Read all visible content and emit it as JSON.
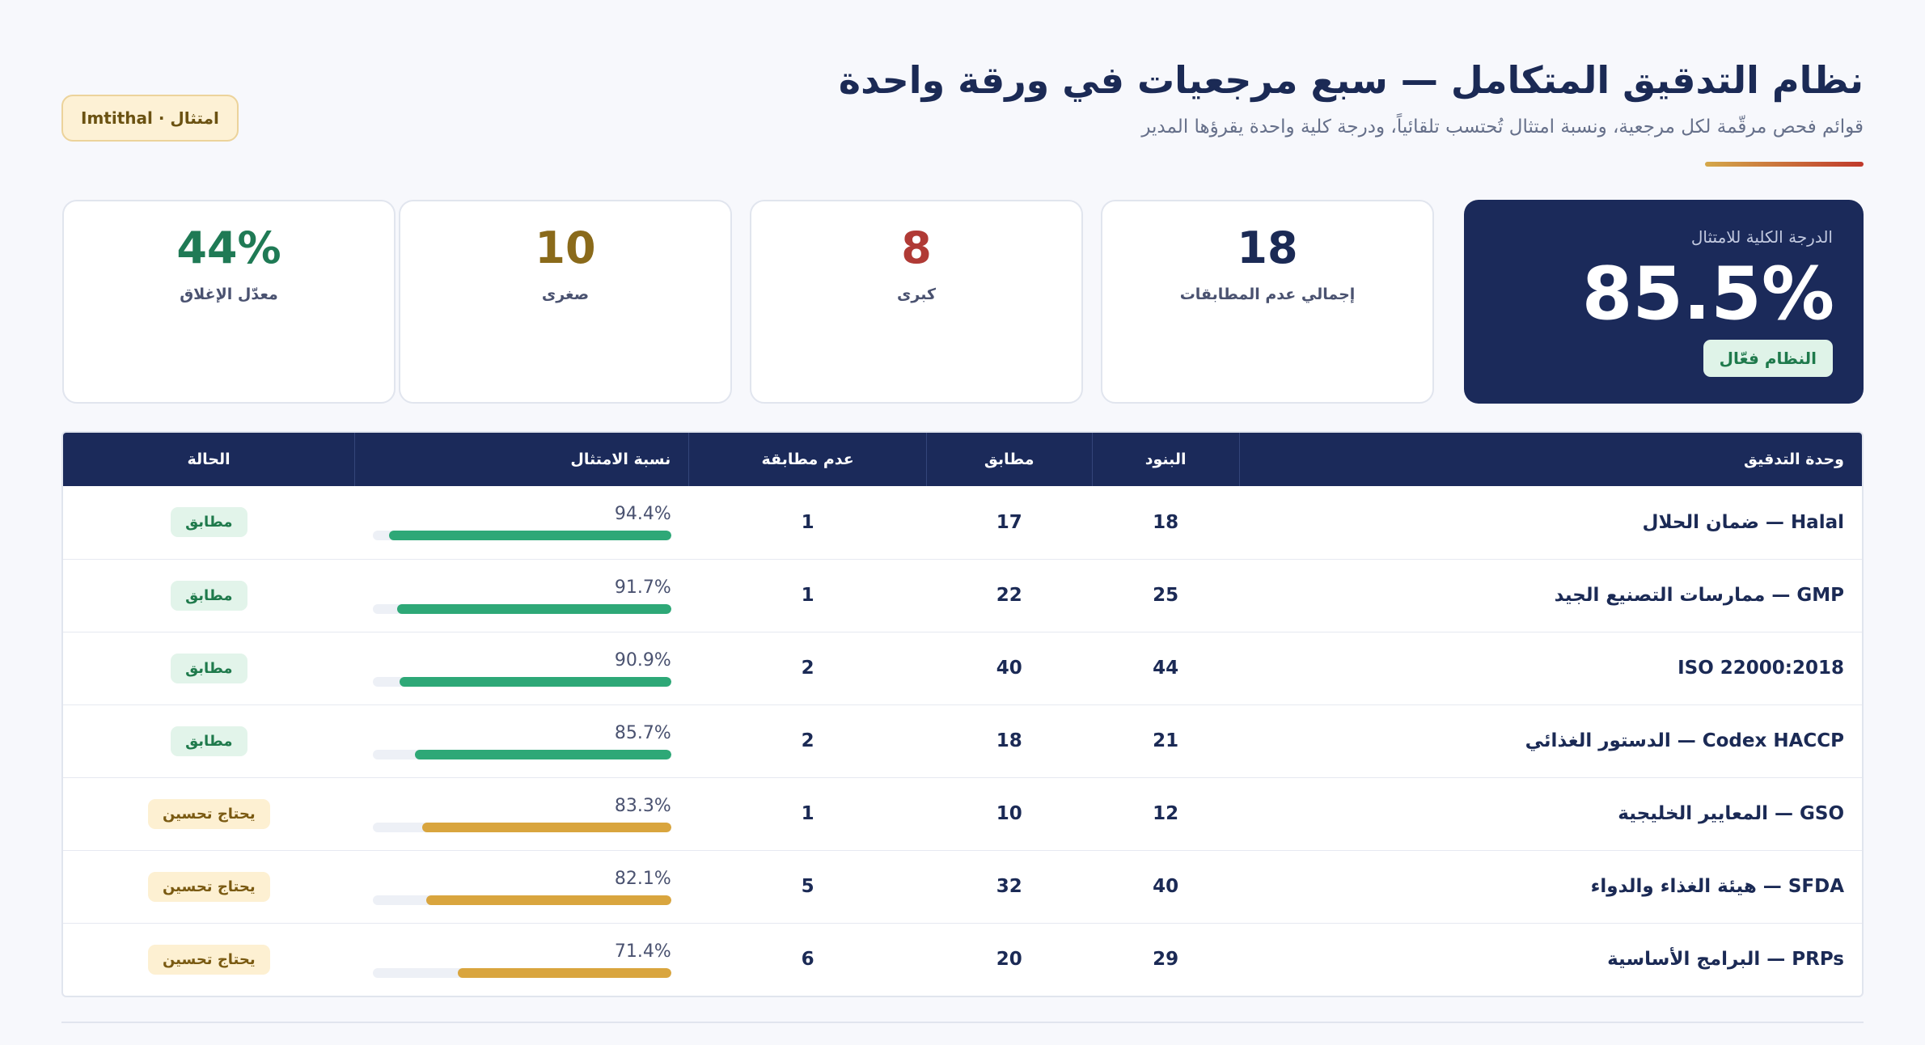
{
  "header": {
    "title": "نظام التدقيق المتكامل — سبع مرجعيات في ورقة واحدة",
    "subtitle": "قوائم فحص مرقّمة لكل مرجعية، ونسبة امتثال تُحتسب تلقائياً، ودرجة كلية واحدة يقرؤها المدير",
    "brand": "امتثال · Imtithal"
  },
  "overall": {
    "label": "الدرجة الكلية للامتثال",
    "value": "85.5%",
    "status": "النظام فعّال"
  },
  "stats": [
    {
      "value": "18",
      "label": "إجمالي عدم المطابقات",
      "color": "#1b2a55"
    },
    {
      "value": "8",
      "label": "كبرى",
      "color": "#b03a35"
    },
    {
      "value": "10",
      "label": "صغرى",
      "color": "#8a6a1a"
    },
    {
      "value": "44%",
      "label": "معدّل الإغلاق",
      "color": "#1f7a55"
    }
  ],
  "table": {
    "headers": {
      "unit": "وحدة التدقيق",
      "items": "البنود",
      "compliant": "مطابق",
      "noncompliant": "عدم مطابقة",
      "rate": "نسبة الامتثال",
      "status": "الحالة"
    },
    "rows": [
      {
        "unit": "Halal — ضمان الحلال",
        "items": "18",
        "compliant": "17",
        "noncompliant": "1",
        "rate": "94.4%",
        "rate_value": 94.4,
        "status": "مطابق",
        "level": "good"
      },
      {
        "unit": "GMP — ممارسات التصنيع الجيد",
        "items": "25",
        "compliant": "22",
        "noncompliant": "1",
        "rate": "91.7%",
        "rate_value": 91.7,
        "status": "مطابق",
        "level": "good"
      },
      {
        "unit": "ISO 22000:2018",
        "items": "44",
        "compliant": "40",
        "noncompliant": "2",
        "rate": "90.9%",
        "rate_value": 90.9,
        "status": "مطابق",
        "level": "good"
      },
      {
        "unit": "Codex HACCP — الدستور الغذائي",
        "items": "21",
        "compliant": "18",
        "noncompliant": "2",
        "rate": "85.7%",
        "rate_value": 85.7,
        "status": "مطابق",
        "level": "good"
      },
      {
        "unit": "GSO — المعايير الخليجية",
        "items": "12",
        "compliant": "10",
        "noncompliant": "1",
        "rate": "83.3%",
        "rate_value": 83.3,
        "status": "يحتاج تحسين",
        "level": "warn"
      },
      {
        "unit": "SFDA — هيئة الغذاء والدواء",
        "items": "40",
        "compliant": "32",
        "noncompliant": "5",
        "rate": "82.1%",
        "rate_value": 82.1,
        "status": "يحتاج تحسين",
        "level": "warn"
      },
      {
        "unit": "PRPs — البرامج الأساسية",
        "items": "29",
        "compliant": "20",
        "noncompliant": "6",
        "rate": "71.4%",
        "rate_value": 71.4,
        "status": "يحتاج تحسين",
        "level": "warn"
      }
    ]
  },
  "colors": {
    "good": "#2ea877",
    "warn": "#d9a53e",
    "navy": "#1b2a5a"
  }
}
